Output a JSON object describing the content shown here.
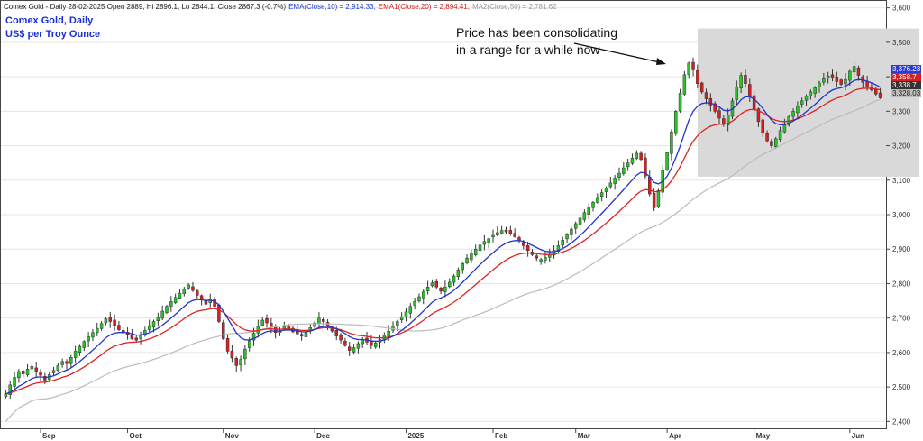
{
  "chart_data": {
    "type": "candlestick",
    "header": {
      "main": "Comex Gold - Daily 28-02-2025 Open 2889, Hi 2896.1, Lo 2844.1, Close 2867.3 (-0.7%)",
      "ema10": "EMA(Close,10) = 2,914.33,",
      "ema20": "EMA1(Close,20) = 2,894.41,",
      "ma50": "MA2(Close,50) = 2,781.62"
    },
    "title": "Comex Gold, Daily",
    "subtitle": "US$ per Troy Ounce",
    "annotation": {
      "line1": "Price has been consolidating",
      "line2": "in a range for a while now"
    },
    "ylim": [
      2380,
      3620
    ],
    "y_ticks": [
      {
        "value": 2400,
        "label": "2,400"
      },
      {
        "value": 2500,
        "label": "2,500"
      },
      {
        "value": 2600,
        "label": "2,600"
      },
      {
        "value": 2700,
        "label": "2,700"
      },
      {
        "value": 2800,
        "label": "2,800"
      },
      {
        "value": 2900,
        "label": "2,900"
      },
      {
        "value": 3000,
        "label": "3,000"
      },
      {
        "value": 3100,
        "label": "3,100"
      },
      {
        "value": 3200,
        "label": "3,200"
      },
      {
        "value": 3300,
        "label": "3,300"
      },
      {
        "value": 3400,
        "label": "3,400"
      },
      {
        "value": 3500,
        "label": "3,500"
      },
      {
        "value": 3600,
        "label": "3,600"
      }
    ],
    "x_ticks": [
      {
        "index": 8,
        "label": "Sep"
      },
      {
        "index": 28,
        "label": "Oct"
      },
      {
        "index": 50,
        "label": "Nov"
      },
      {
        "index": 71,
        "label": "Dec"
      },
      {
        "index": 92,
        "label": "2025"
      },
      {
        "index": 112,
        "label": "Feb"
      },
      {
        "index": 131,
        "label": "Mar"
      },
      {
        "index": 152,
        "label": "Apr"
      },
      {
        "index": 172,
        "label": "May"
      },
      {
        "index": 194,
        "label": "Jun"
      }
    ],
    "range_box": {
      "start": 159,
      "end": 210,
      "low": 3110,
      "high": 3540
    },
    "last_values": [
      {
        "name": "EMA10",
        "value": 3376.23,
        "label": "3,376.23",
        "color": "#2b3ad6"
      },
      {
        "name": "EMA20",
        "value": 3358.7,
        "label": "3,358.7",
        "color": "#d42020"
      },
      {
        "name": "Close",
        "value": 3338.7,
        "label": "3,338.7",
        "color": "#333333"
      },
      {
        "name": "MA50",
        "value": 3328.03,
        "label": "3,328.03",
        "color": "#bdbdbd"
      }
    ],
    "colors": {
      "up": "#27c427",
      "down": "#d42020",
      "ema10": "#2233cc",
      "ema20": "#dd2222",
      "ma50": "#bbbbbb",
      "box": "#d9d9d9"
    },
    "closes": [
      2480,
      2506,
      2528,
      2545,
      2538,
      2552,
      2560,
      2546,
      2534,
      2520,
      2536,
      2548,
      2562,
      2574,
      2568,
      2586,
      2604,
      2618,
      2632,
      2646,
      2658,
      2670,
      2684,
      2698,
      2690,
      2678,
      2666,
      2660,
      2652,
      2640,
      2636,
      2650,
      2664,
      2678,
      2690,
      2702,
      2720,
      2734,
      2748,
      2760,
      2772,
      2784,
      2796,
      2780,
      2766,
      2752,
      2740,
      2756,
      2734,
      2690,
      2640,
      2604,
      2584,
      2562,
      2580,
      2610,
      2634,
      2656,
      2676,
      2694,
      2686,
      2672,
      2658,
      2664,
      2676,
      2670,
      2660,
      2654,
      2648,
      2660,
      2672,
      2686,
      2700,
      2690,
      2676,
      2662,
      2648,
      2636,
      2620,
      2606,
      2614,
      2626,
      2638,
      2630,
      2620,
      2628,
      2638,
      2650,
      2662,
      2676,
      2690,
      2704,
      2718,
      2734,
      2748,
      2762,
      2776,
      2790,
      2802,
      2790,
      2778,
      2790,
      2804,
      2822,
      2840,
      2858,
      2874,
      2888,
      2900,
      2912,
      2922,
      2930,
      2940,
      2948,
      2954,
      2950,
      2944,
      2936,
      2924,
      2910,
      2896,
      2884,
      2874,
      2870,
      2876,
      2884,
      2896,
      2910,
      2926,
      2942,
      2958,
      2974,
      2990,
      3006,
      3022,
      3036,
      3050,
      3064,
      3078,
      3092,
      3106,
      3120,
      3136,
      3150,
      3164,
      3178,
      3160,
      3112,
      3060,
      3020,
      3070,
      3128,
      3180,
      3240,
      3300,
      3352,
      3406,
      3440,
      3420,
      3380,
      3356,
      3336,
      3318,
      3300,
      3280,
      3262,
      3290,
      3330,
      3370,
      3404,
      3380,
      3342,
      3306,
      3270,
      3236,
      3214,
      3200,
      3220,
      3244,
      3264,
      3284,
      3300,
      3316,
      3330,
      3344,
      3356,
      3368,
      3382,
      3394,
      3402,
      3396,
      3386,
      3378,
      3392,
      3416,
      3430,
      3404,
      3384,
      3370,
      3362,
      3350,
      3338.7
    ]
  }
}
